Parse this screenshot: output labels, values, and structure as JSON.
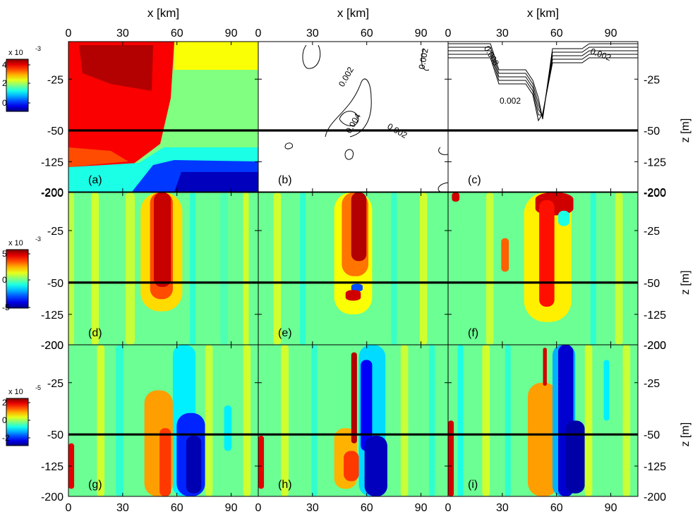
{
  "chart_data": {
    "type": "heatmap",
    "title": "",
    "xlabel": "x [km]",
    "ylabel": "z [m]",
    "x_ticks": [
      "0",
      "30",
      "60",
      "90"
    ],
    "x_range_km": [
      0,
      105
    ],
    "z_ticks": [
      "-25",
      "-50",
      "-125",
      "-200"
    ],
    "panel_top_label": "-200",
    "colorbars": [
      {
        "row": 0,
        "exponent": "x 10",
        "power": "-3",
        "ticks": [
          "4",
          "2",
          "0"
        ],
        "range": [
          -1,
          5
        ]
      },
      {
        "row": 1,
        "exponent": "x 10",
        "power": "-3",
        "ticks": [
          "5",
          "0",
          "-5"
        ],
        "range": [
          -5,
          5
        ]
      },
      {
        "row": 2,
        "exponent": "x 10",
        "power": "-5",
        "ticks": [
          "2",
          "0",
          "-2"
        ],
        "range": [
          -3,
          3
        ]
      }
    ],
    "panels": [
      {
        "label": "(a)",
        "kind": "filled",
        "contour_labels": []
      },
      {
        "label": "(b)",
        "kind": "contour_lines",
        "contour_labels": [
          "0.002",
          "0.004",
          "0.002",
          "0.002"
        ]
      },
      {
        "label": "(c)",
        "kind": "contour_lines",
        "contour_labels": [
          "0.008",
          "0.002",
          "0.002"
        ]
      },
      {
        "label": "(d)",
        "kind": "filled",
        "contour_labels": []
      },
      {
        "label": "(e)",
        "kind": "filled",
        "contour_labels": []
      },
      {
        "label": "(f)",
        "kind": "filled",
        "contour_labels": []
      },
      {
        "label": "(g)",
        "kind": "filled",
        "contour_labels": []
      },
      {
        "label": "(h)",
        "kind": "filled",
        "contour_labels": []
      },
      {
        "label": "(i)",
        "kind": "filled",
        "contour_labels": []
      }
    ]
  }
}
